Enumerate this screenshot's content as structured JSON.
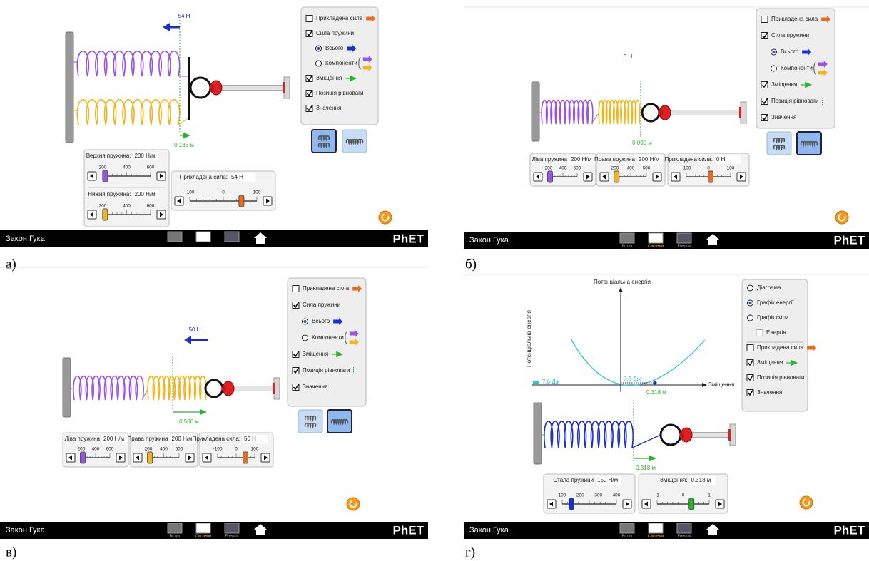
{
  "panels": [
    {
      "label": "а)",
      "force_readout": "54 Н",
      "displacement_readout": "0.135 м",
      "controls": [
        {
          "text": "Прикладена сила",
          "kind": "checkbox",
          "checked": false
        },
        {
          "text": "Сила пружини",
          "kind": "checkbox",
          "checked": true
        },
        {
          "text": "Всього",
          "kind": "radio",
          "checked": true
        },
        {
          "text": "Компоненти",
          "kind": "radio",
          "checked": false
        },
        {
          "text": "Зміщення",
          "kind": "checkbox",
          "checked": true
        },
        {
          "text": "Позиція рівноваги",
          "kind": "checkbox",
          "checked": true
        },
        {
          "text": "Значення",
          "kind": "checkbox",
          "checked": true
        }
      ],
      "sliders": [
        {
          "title": "Верхня пружина:",
          "value": "200 Н/м",
          "ticks": [
            "200",
            "400",
            "600"
          ]
        },
        {
          "title": "Нижня пружина:",
          "value": "200 Н/м",
          "ticks": [
            "200",
            "400",
            "600"
          ]
        },
        {
          "title": "Прикладена сила:",
          "value": "54 Н",
          "ticks": [
            "-100",
            "0",
            "100"
          ]
        }
      ],
      "nav": {
        "title": "Закон Гука",
        "logo": "PhET"
      }
    },
    {
      "label": "б)",
      "force_readout": "0 Н",
      "displacement_readout": "0.000 м",
      "controls": [
        {
          "text": "Прикладена сила",
          "kind": "checkbox",
          "checked": false
        },
        {
          "text": "Сила пружини",
          "kind": "checkbox",
          "checked": true
        },
        {
          "text": "Всього",
          "kind": "radio",
          "checked": true
        },
        {
          "text": "Компоненти",
          "kind": "radio",
          "checked": false
        },
        {
          "text": "Зміщення",
          "kind": "checkbox",
          "checked": true
        },
        {
          "text": "Позиція рівноваги",
          "kind": "checkbox",
          "checked": true
        },
        {
          "text": "Значення",
          "kind": "checkbox",
          "checked": true
        }
      ],
      "sliders": [
        {
          "title": "Ліва пружина",
          "value": "200 Н/м",
          "ticks": [
            "200",
            "400",
            "600"
          ]
        },
        {
          "title": "Права пружина",
          "value": "200 Н/м",
          "ticks": [
            "200",
            "400",
            "600"
          ]
        },
        {
          "title": "Прикладена сила:",
          "value": "0 Н",
          "ticks": [
            "-100",
            "0",
            "100"
          ]
        }
      ],
      "nav": {
        "title": "Закон Гука",
        "tabs": [
          "Вступ",
          "Системи",
          "Енергія"
        ],
        "logo": "PhET"
      }
    },
    {
      "label": "в)",
      "force_readout": "50 Н",
      "displacement_readout": "0.500 м",
      "controls": [
        {
          "text": "Прикладена сила",
          "kind": "checkbox",
          "checked": false
        },
        {
          "text": "Сила пружини",
          "kind": "checkbox",
          "checked": true
        },
        {
          "text": "Всього",
          "kind": "radio",
          "checked": true
        },
        {
          "text": "Компоненти",
          "kind": "radio",
          "checked": false
        },
        {
          "text": "Зміщення",
          "kind": "checkbox",
          "checked": true
        },
        {
          "text": "Позиція рівноваги",
          "kind": "checkbox",
          "checked": true
        },
        {
          "text": "Значення",
          "kind": "checkbox",
          "checked": true
        }
      ],
      "sliders": [
        {
          "title": "Ліва пружина",
          "value": "200 Н/м",
          "ticks": [
            "200",
            "400",
            "600"
          ]
        },
        {
          "title": "Права пружина",
          "value": "200 Н/м",
          "ticks": [
            "200",
            "400",
            "600"
          ]
        },
        {
          "title": "Прикладена сила:",
          "value": "50 Н",
          "ticks": [
            "-100",
            "0",
            "100"
          ]
        }
      ],
      "nav": {
        "title": "Закон Гука",
        "tabs": [
          "Вступ",
          "Системи",
          "Енергія"
        ],
        "logo": "PhET"
      }
    },
    {
      "label": "г)",
      "displacement_readout": "0.318 м",
      "graph": {
        "title": "Потенціальна енергія",
        "y_label": "Потенціальна енергія",
        "x_label": "Зміщення",
        "energy_labels": [
          "7.6 Дж",
          "7.6 Дж"
        ],
        "position_label": "0.318 м"
      },
      "controls": [
        {
          "text": "Діаграма",
          "kind": "radio",
          "checked": false
        },
        {
          "text": "Графік енергії",
          "kind": "radio",
          "checked": true
        },
        {
          "text": "Графік сили",
          "kind": "radio",
          "checked": false
        },
        {
          "text": "Енергія",
          "kind": "checkbox",
          "checked": false,
          "enabled": false
        },
        {
          "text": "Прикладена сила",
          "kind": "checkbox",
          "checked": false
        },
        {
          "text": "Зміщення",
          "kind": "checkbox",
          "checked": true
        },
        {
          "text": "Позиція рівноваги",
          "kind": "checkbox",
          "checked": true
        },
        {
          "text": "Значення",
          "kind": "checkbox",
          "checked": true
        }
      ],
      "sliders": [
        {
          "title": "Стала пружини",
          "value": "150 Н/м",
          "ticks": [
            "100",
            "200",
            "300",
            "400"
          ]
        },
        {
          "title": "Зміщення:",
          "value": "0.318 м",
          "ticks": [
            "-1",
            "0",
            "1"
          ]
        }
      ],
      "nav": {
        "title": "Закон Гука",
        "tabs": [
          "Вступ",
          "Системи",
          "Енергія"
        ],
        "logo": "PhET"
      }
    }
  ]
}
